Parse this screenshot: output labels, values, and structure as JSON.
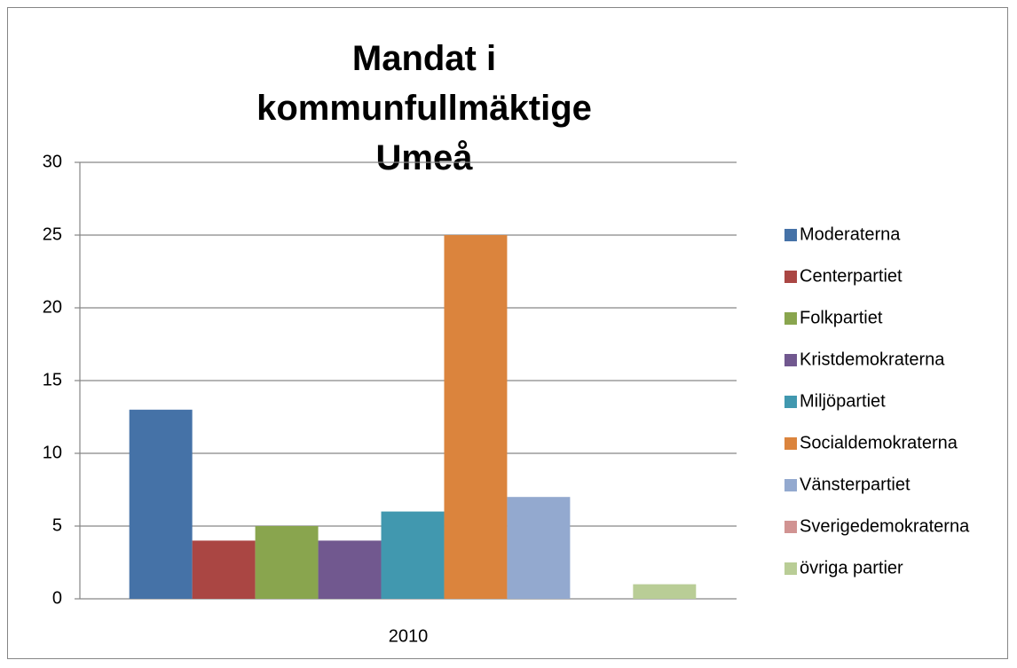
{
  "chart_data": {
    "type": "bar",
    "title": "Mandat i kommunfullmäktige Umeå",
    "categories": [
      "2010"
    ],
    "series": [
      {
        "name": "Moderaterna",
        "color": "#4572a7",
        "values": [
          13
        ]
      },
      {
        "name": "Centerpartiet",
        "color": "#aa4643",
        "values": [
          4
        ]
      },
      {
        "name": "Folkpartiet",
        "color": "#89a54e",
        "values": [
          5
        ]
      },
      {
        "name": "Kristdemokraterna",
        "color": "#71588f",
        "values": [
          4
        ]
      },
      {
        "name": "Miljöpartiet",
        "color": "#4198af",
        "values": [
          6
        ]
      },
      {
        "name": "Socialdemokraterna",
        "color": "#db843d",
        "values": [
          25
        ]
      },
      {
        "name": "Vänsterpartiet",
        "color": "#93a9cf",
        "values": [
          7
        ]
      },
      {
        "name": "Sverigedemokraterna",
        "color": "#d19392",
        "values": [
          0
        ]
      },
      {
        "name": "övriga partier",
        "color": "#b9cd96",
        "values": [
          1
        ]
      }
    ],
    "ylim": [
      0,
      30
    ],
    "yticks": [
      0,
      5,
      10,
      15,
      20,
      25,
      30
    ],
    "grid": true,
    "legend": "right"
  }
}
